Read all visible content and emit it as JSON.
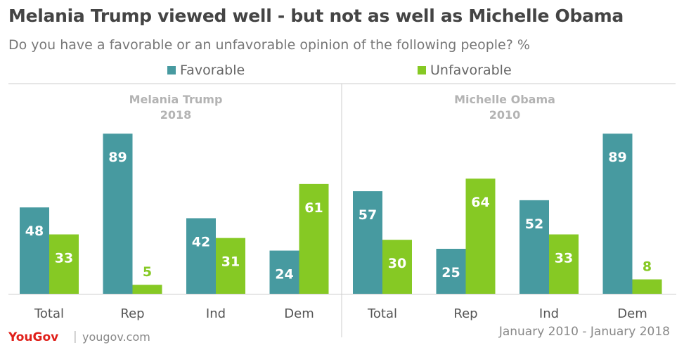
{
  "title": "Melania Trump viewed well - but not as well as Michelle Obama",
  "subtitle": "Do you have a favorable or an unfavorable opinion of the following people? %",
  "legend": [
    {
      "label": "Favorable",
      "color": "#479aa0"
    },
    {
      "label": "Unfavorable",
      "color": "#86c924"
    }
  ],
  "chart_data": [
    {
      "type": "bar",
      "title": "Melania Trump",
      "subtitle": "2018",
      "categories": [
        "Total",
        "Rep",
        "Ind",
        "Dem"
      ],
      "series": [
        {
          "name": "Favorable",
          "values": [
            48,
            89,
            42,
            24
          ]
        },
        {
          "name": "Unfavorable",
          "values": [
            33,
            5,
            31,
            61
          ]
        }
      ],
      "ylim": [
        0,
        100
      ],
      "grid": false,
      "legend_position": "top"
    },
    {
      "type": "bar",
      "title": "Michelle Obama",
      "subtitle": "2010",
      "categories": [
        "Total",
        "Rep",
        "Ind",
        "Dem"
      ],
      "series": [
        {
          "name": "Favorable",
          "values": [
            57,
            25,
            52,
            89
          ]
        },
        {
          "name": "Unfavorable",
          "values": [
            30,
            64,
            33,
            8
          ]
        }
      ],
      "ylim": [
        0,
        100
      ],
      "grid": false,
      "legend_position": "top"
    }
  ],
  "footer": {
    "logo": "YouGov",
    "separator": "|",
    "site": "yougov.com",
    "date_range": "January 2010 - January 2018"
  },
  "colors": {
    "favorable": "#479aa0",
    "unfavorable": "#86c924",
    "label_text": "#ffffff",
    "label_text_on_light": "#86c924",
    "axis": "#cccccc",
    "brand": "#e0201a"
  }
}
